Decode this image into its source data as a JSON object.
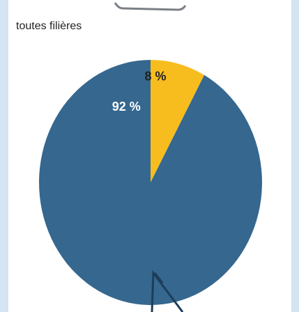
{
  "chart_data": {
    "type": "pie",
    "title": "toutes filières",
    "categories": [
      null,
      null
    ],
    "values": [
      8,
      92
    ],
    "value_labels": [
      "8 %",
      "92 %"
    ],
    "colors": [
      "#f7bd1e",
      "#35678f"
    ]
  }
}
